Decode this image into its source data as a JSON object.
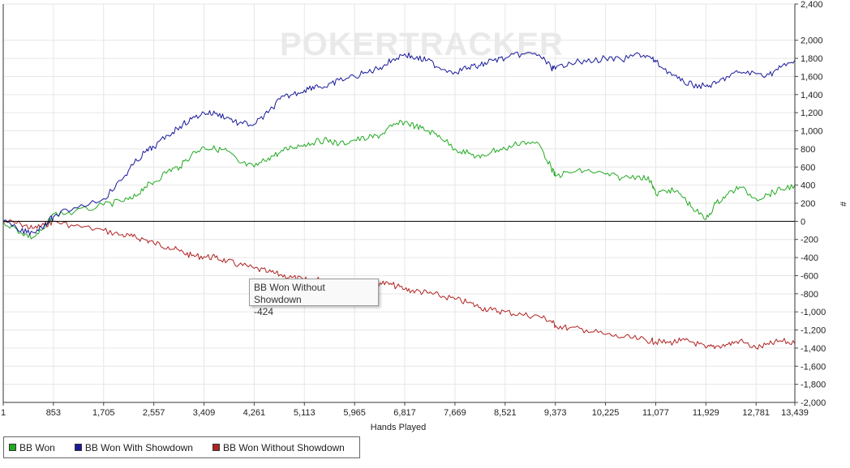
{
  "chart_data": {
    "type": "line",
    "title": "",
    "watermark": "POKERTRACKER",
    "xlabel": "Hands Played",
    "ylabel": "#",
    "xlim": [
      1,
      13439
    ],
    "ylim": [
      -2000,
      2400
    ],
    "x_ticks": [
      "1",
      "853",
      "1,705",
      "2,557",
      "3,409",
      "4,261",
      "5,113",
      "5,965",
      "6,817",
      "7,669",
      "8,521",
      "9,373",
      "10,225",
      "11,077",
      "11,929",
      "12,781",
      "13,439"
    ],
    "y_ticks": [
      "2,400",
      "2,000",
      "1,800",
      "1,600",
      "1,400",
      "1,200",
      "1,000",
      "800",
      "600",
      "400",
      "200",
      "0",
      "-200",
      "-400",
      "-600",
      "-800",
      "-1,000",
      "-1,200",
      "-1,400",
      "-1,600",
      "-1,800",
      "-2,000"
    ],
    "grid": true,
    "legend_position": "bottom-left",
    "tooltip": {
      "label": "BB Won Without Showdown",
      "value": "-424"
    },
    "series": [
      {
        "name": "BB Won",
        "color": "#22aa22",
        "x": [
          1,
          300,
          500,
          700,
          853,
          1200,
          1705,
          2000,
          2200,
          2400,
          2557,
          2800,
          3000,
          3200,
          3409,
          3600,
          3800,
          4000,
          4261,
          4500,
          4700,
          4900,
          5113,
          5300,
          5500,
          5700,
          5965,
          6200,
          6400,
          6600,
          6817,
          7000,
          7200,
          7400,
          7669,
          7900,
          8100,
          8300,
          8521,
          8800,
          9100,
          9300,
          9373,
          9600,
          9900,
          10225,
          10500,
          10800,
          11000,
          11077,
          11300,
          11500,
          11700,
          11929,
          12100,
          12300,
          12500,
          12781,
          13000,
          13200,
          13439
        ],
        "values": [
          0,
          -120,
          -180,
          -80,
          80,
          100,
          180,
          220,
          250,
          380,
          430,
          560,
          600,
          740,
          820,
          800,
          780,
          650,
          600,
          700,
          760,
          820,
          850,
          880,
          900,
          850,
          900,
          920,
          950,
          1050,
          1100,
          1050,
          1000,
          950,
          800,
          750,
          700,
          780,
          800,
          880,
          850,
          600,
          500,
          540,
          560,
          520,
          480,
          500,
          450,
          300,
          350,
          300,
          150,
          20,
          200,
          300,
          380,
          250,
          300,
          350,
          400
        ]
      },
      {
        "name": "BB Won With Showdown",
        "color": "#1a1a9c",
        "x": [
          1,
          300,
          500,
          700,
          853,
          1200,
          1705,
          2000,
          2200,
          2400,
          2557,
          2800,
          3000,
          3200,
          3409,
          3600,
          3800,
          4000,
          4261,
          4500,
          4700,
          4900,
          5113,
          5300,
          5500,
          5700,
          5965,
          6200,
          6400,
          6600,
          6817,
          7000,
          7200,
          7400,
          7669,
          7900,
          8100,
          8300,
          8521,
          8800,
          9100,
          9300,
          9373,
          9600,
          9900,
          10225,
          10500,
          10800,
          11000,
          11077,
          11300,
          11500,
          11700,
          11929,
          12100,
          12300,
          12500,
          12781,
          13000,
          13200,
          13439
        ],
        "values": [
          0,
          -110,
          -120,
          -40,
          50,
          150,
          250,
          450,
          620,
          760,
          820,
          950,
          1050,
          1130,
          1200,
          1190,
          1150,
          1080,
          1070,
          1200,
          1350,
          1400,
          1450,
          1500,
          1480,
          1560,
          1600,
          1650,
          1700,
          1780,
          1850,
          1800,
          1780,
          1700,
          1650,
          1700,
          1720,
          1780,
          1800,
          1850,
          1840,
          1700,
          1680,
          1760,
          1760,
          1800,
          1780,
          1850,
          1800,
          1760,
          1650,
          1550,
          1510,
          1490,
          1520,
          1600,
          1650,
          1630,
          1620,
          1700,
          1780
        ]
      },
      {
        "name": "BB Won Without Showdown",
        "color": "#b22222",
        "x": [
          1,
          300,
          500,
          700,
          853,
          1200,
          1705,
          2000,
          2200,
          2400,
          2557,
          2800,
          3000,
          3200,
          3409,
          3600,
          3800,
          4000,
          4261,
          4500,
          4700,
          4900,
          5113,
          5300,
          5500,
          5700,
          5965,
          6200,
          6400,
          6600,
          6817,
          7000,
          7200,
          7400,
          7669,
          7900,
          8100,
          8300,
          8521,
          8800,
          9100,
          9300,
          9373,
          9600,
          9900,
          10225,
          10500,
          10800,
          11000,
          11077,
          11300,
          11500,
          11700,
          11929,
          12100,
          12300,
          12500,
          12781,
          13000,
          13200,
          13439
        ],
        "values": [
          0,
          -30,
          -80,
          -40,
          0,
          -50,
          -100,
          -150,
          -170,
          -200,
          -240,
          -280,
          -330,
          -380,
          -390,
          -400,
          -440,
          -480,
          -520,
          -560,
          -590,
          -620,
          -650,
          -640,
          -660,
          -700,
          -720,
          -700,
          -680,
          -700,
          -750,
          -770,
          -790,
          -820,
          -860,
          -900,
          -950,
          -980,
          -1000,
          -1030,
          -1050,
          -1100,
          -1150,
          -1180,
          -1200,
          -1250,
          -1280,
          -1300,
          -1320,
          -1330,
          -1340,
          -1320,
          -1330,
          -1400,
          -1380,
          -1360,
          -1320,
          -1400,
          -1360,
          -1320,
          -1350
        ]
      }
    ]
  }
}
